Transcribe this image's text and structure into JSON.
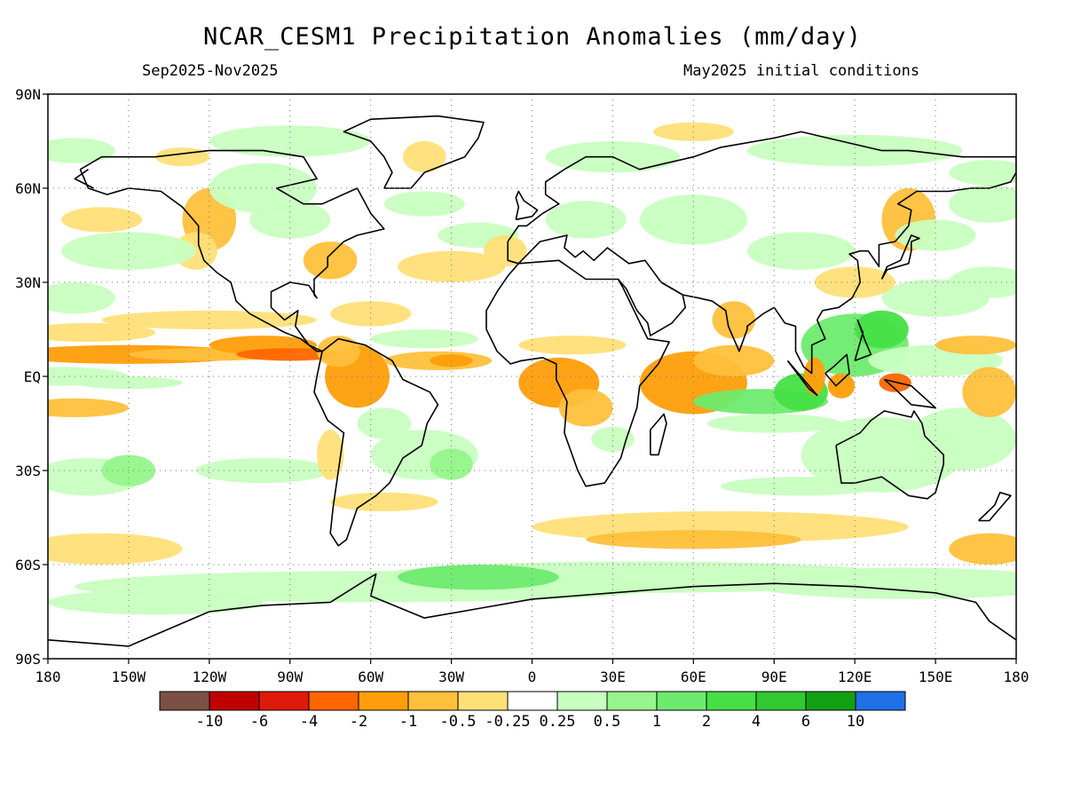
{
  "map": {
    "title": "NCAR_CESM1 Precipitation Anomalies (mm/day)",
    "period_label": "Sep2025-Nov2025",
    "init_label": "May2025 initial conditions",
    "lon_ticks": [
      "180",
      "150W",
      "120W",
      "90W",
      "60W",
      "30W",
      "0",
      "30E",
      "60E",
      "90E",
      "120E",
      "150E",
      "180"
    ],
    "lat_ticks": [
      "90N",
      "60N",
      "30N",
      "EQ",
      "30S",
      "60S",
      "90S"
    ],
    "colorbar": {
      "colors": [
        "#7b5146",
        "#c00000",
        "#e01a0a",
        "#ff6600",
        "#ff9e0a",
        "#ffc03c",
        "#ffe078",
        "#ffffff",
        "#c8ffc0",
        "#96f58c",
        "#6eeb6e",
        "#46e046",
        "#32c832",
        "#14a014",
        "#2070e8"
      ],
      "labels": [
        "-10",
        "-6",
        "-4",
        "-2",
        "-1",
        "-0.5",
        "-0.25",
        "0.25",
        "0.5",
        "1",
        "2",
        "4",
        "6",
        "10"
      ]
    },
    "palette": {
      "dry_strong": "#ff6600",
      "dry_mod": "#ff9e0a",
      "dry_weak": "#ffc03c",
      "dry_light": "#ffe078",
      "wet_light": "#c8ffc0",
      "wet_weak": "#96f58c",
      "wet_mod": "#6eeb6e",
      "wet_strong": "#46e046",
      "coast": "#000000"
    }
  }
}
